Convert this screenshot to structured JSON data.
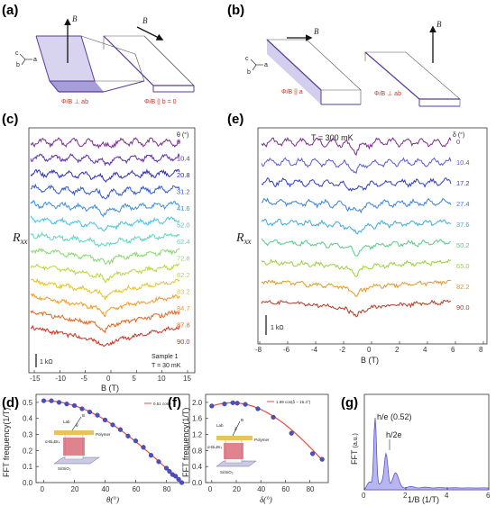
{
  "panels": {
    "a": {
      "label": "(a)",
      "axes_c": "c",
      "axes_b": "b",
      "axes_a": "a",
      "field_label": "B",
      "caption_left": "Φ/B ⊥ ab",
      "caption_right": "Φ/B || b = 0"
    },
    "b": {
      "label": "(b)",
      "axes_c": "c",
      "axes_b": "b",
      "axes_a": "a",
      "field_label": "B",
      "caption_left": "Φ/B || a",
      "caption_right": "Φ/B ⊥ ab"
    },
    "c": {
      "label": "(c)",
      "ylabel": "R",
      "ylabel_sub": "xx",
      "xlabel": "B (T)",
      "param_header": "θ (°)",
      "sample_text": "Sample 1",
      "temp_text": "T = 30 mK",
      "scale_text": "1 kΩ",
      "xticks": [
        "-15",
        "-10",
        "-5",
        "0",
        "5",
        "10",
        "15"
      ]
    },
    "e": {
      "label": "(e)",
      "ylabel": "R",
      "ylabel_sub": "xx",
      "xlabel": "B (T)",
      "param_header": "δ (°)",
      "temp_text": "T = 300 mK",
      "scale_text": "1 kΩ",
      "xticks": [
        "-8",
        "-6",
        "-4",
        "-2",
        "0",
        "2",
        "4",
        "6",
        "8"
      ]
    },
    "d": {
      "label": "(d)",
      "ylabel": "FFT frequency(1/T)",
      "xlabel": "θ(°)",
      "legend": "0.51 cosθ",
      "yticks": [
        "0.0",
        "0.1",
        "0.2",
        "0.3",
        "0.4",
        "0.5"
      ],
      "xticks": [
        "0",
        "20",
        "40",
        "60",
        "80"
      ],
      "inset_labels": [
        "Lab",
        "B",
        "θ",
        "Polymer",
        "α-Bi₄Br₄",
        "Si/SiO₂"
      ]
    },
    "f": {
      "label": "(f)",
      "ylabel": "FFT frequency(1/T)",
      "xlabel": "δ(°)",
      "legend": "1.99 cos(δ − 16.4°)",
      "yticks": [
        "0.0",
        "0.4",
        "0.8",
        "1.2",
        "1.6",
        "2.0"
      ],
      "xticks": [
        "0",
        "20",
        "40",
        "60",
        "80"
      ],
      "inset_labels": [
        "Lab",
        "B",
        "δ",
        "Polymer",
        "α-Bi₄Br₄",
        "Si/SiO₂"
      ]
    },
    "g": {
      "label": "(g)",
      "ylabel": "FFT",
      "ylabel_unit": "(a.u.)",
      "xlabel": "1/B (1/T)",
      "peak1_label": "h/e (0.52)",
      "peak2_label": "h/2e",
      "xticks": [
        "0",
        "2",
        "4",
        "6"
      ]
    }
  },
  "chart_data": [
    {
      "id": "c",
      "type": "line",
      "x_range": [
        -16,
        16
      ],
      "series": [
        {
          "name": "0",
          "color": "#7b2d8e"
        },
        {
          "name": "10.4",
          "color": "#5b2ca8"
        },
        {
          "name": "20.8",
          "color": "#2e2fb8"
        },
        {
          "name": "31.2",
          "color": "#2f5ad0"
        },
        {
          "name": "41.6",
          "color": "#3c8fde"
        },
        {
          "name": "52.0",
          "color": "#3fc3e8"
        },
        {
          "name": "62.4",
          "color": "#5fd4c2"
        },
        {
          "name": "72.8",
          "color": "#8ad86e"
        },
        {
          "name": "82.2",
          "color": "#bcd63b"
        },
        {
          "name": "83.2",
          "color": "#e3c52a"
        },
        {
          "name": "84.7",
          "color": "#f19b22"
        },
        {
          "name": "87.8",
          "color": "#e6661e"
        },
        {
          "name": "90.0",
          "color": "#cc3020"
        }
      ]
    },
    {
      "id": "e",
      "type": "line",
      "x_range": [
        -8,
        8
      ],
      "series": [
        {
          "name": "0",
          "color": "#7b2d8e"
        },
        {
          "name": "10.4",
          "color": "#5a5ad6"
        },
        {
          "name": "17.2",
          "color": "#2e3fc0"
        },
        {
          "name": "27.4",
          "color": "#3b7fd6"
        },
        {
          "name": "37.6",
          "color": "#3faad6"
        },
        {
          "name": "50.2",
          "color": "#5bc98a"
        },
        {
          "name": "65.0",
          "color": "#9bd13d"
        },
        {
          "name": "82.2",
          "color": "#e09a28"
        },
        {
          "name": "90.0",
          "color": "#b23a22"
        }
      ]
    },
    {
      "id": "d",
      "type": "scatter",
      "x": [
        0,
        5,
        10,
        15,
        20,
        25,
        30,
        35,
        40,
        45,
        50,
        55,
        60,
        65,
        70,
        75,
        80,
        82,
        84,
        86,
        88,
        90
      ],
      "y": [
        0.51,
        0.51,
        0.5,
        0.49,
        0.48,
        0.46,
        0.44,
        0.42,
        0.39,
        0.36,
        0.33,
        0.29,
        0.26,
        0.22,
        0.17,
        0.13,
        0.09,
        0.07,
        0.05,
        0.04,
        0.02,
        0.0
      ],
      "fit": "0.51 cosθ",
      "xlim": [
        -5,
        95
      ],
      "ylim": [
        0,
        0.55
      ]
    },
    {
      "id": "f",
      "type": "scatter",
      "x": [
        0,
        10.4,
        17.2,
        20.8,
        27.4,
        37.6,
        50.2,
        65.0,
        82.2,
        90.0
      ],
      "y": [
        1.91,
        1.96,
        1.99,
        1.98,
        1.95,
        1.84,
        1.63,
        1.23,
        0.72,
        0.58
      ],
      "fit": "1.99 cos(δ − 16.4°)",
      "xlim": [
        -5,
        95
      ],
      "ylim": [
        0,
        2.2
      ]
    },
    {
      "id": "g",
      "type": "area",
      "xlim": [
        0,
        6
      ],
      "peaks": [
        {
          "x": 0.52,
          "label": "h/e (0.52)"
        },
        {
          "x": 1.05,
          "label": "h/2e"
        }
      ]
    }
  ]
}
